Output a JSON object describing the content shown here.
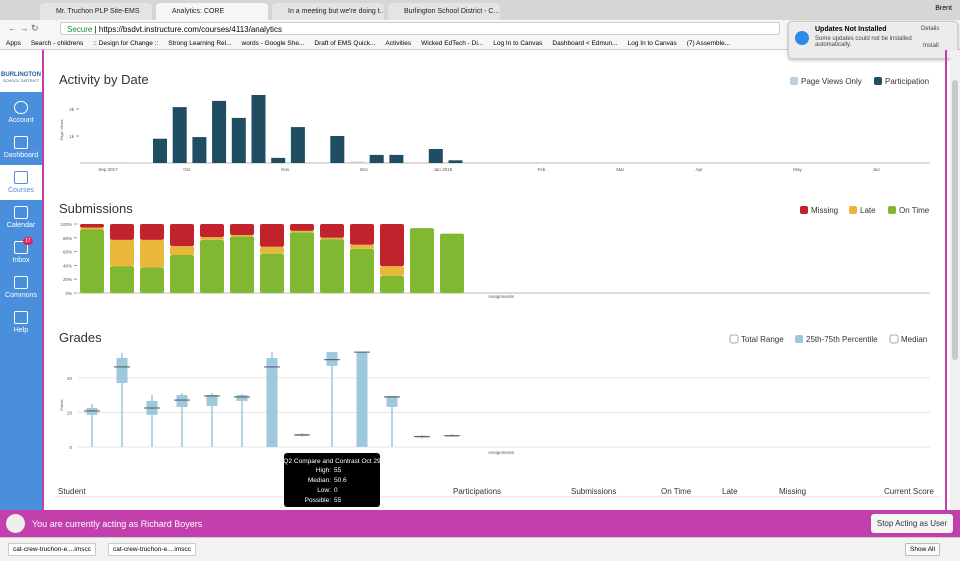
{
  "browser": {
    "tabs": [
      "Mr. Truchon PLP Site-EMS",
      "Analytics: CORE",
      "In a meeting but we're doing t...",
      "Burlington School District - C..."
    ],
    "user": "Brent",
    "secure": "Secure",
    "url": "https://bsdvt.instructure.com/courses/4113/analytics",
    "bookmarks": [
      "Apps",
      "Search - childrens",
      ":: Design for Change ::",
      "Strong Learning Rel...",
      "words - Google She...",
      "Draft of EMS Quick...",
      "Activities",
      "Wicked EdTech - Di...",
      "Log In to Canvas",
      "Dashboard < Edmun...",
      "Log In to Canvas",
      "(7) Assemble..."
    ]
  },
  "notification": {
    "title": "Updates Not Installed",
    "text": "Some updates could not be installed automatically.",
    "buttons": [
      "Details",
      "Install"
    ]
  },
  "sidebar": {
    "logo": "BURLINGTON",
    "logo_sub": "SCHOOL DISTRICT",
    "items": [
      "Account",
      "Dashboard",
      "Courses",
      "Calendar",
      "Inbox",
      "Commons",
      "Help"
    ],
    "inbox_badge": "17"
  },
  "activity": {
    "type": "bar",
    "title": "Activity by Date",
    "y_label": "Page Views",
    "categories": [
      "Sep 2017",
      null,
      null,
      null,
      "Oct",
      null,
      null,
      null,
      null,
      "Nov",
      null,
      null,
      null,
      "Dec",
      null,
      null,
      null,
      "Jan 2018",
      null,
      null,
      null,
      null,
      "Feb",
      null,
      null,
      null,
      "Mar",
      null,
      null,
      null,
      "Apr",
      null,
      null,
      null,
      null,
      "May",
      null,
      null,
      null,
      "Jun"
    ],
    "series": [
      {
        "name": "Page Views Only",
        "color": "#b9d0de",
        "values": [
          0,
          20,
          0,
          0,
          0,
          0,
          0,
          0,
          0,
          0,
          0,
          0,
          50,
          0,
          0,
          0,
          0,
          0,
          0,
          0,
          0,
          0,
          0,
          0,
          0,
          0,
          0,
          0,
          0,
          0,
          0,
          0,
          0,
          0,
          0,
          0,
          0,
          0,
          0,
          0
        ]
      },
      {
        "name": "Participation",
        "color": "#1f4e63",
        "values": [
          0,
          0,
          900,
          2070,
          960,
          2300,
          1670,
          2520,
          190,
          1330,
          0,
          1000,
          0,
          300,
          300,
          0,
          520,
          100,
          0,
          0,
          0,
          0,
          0,
          0,
          0,
          0,
          0,
          0,
          0,
          0,
          0,
          0,
          0,
          0,
          0,
          0,
          0,
          0,
          0,
          0
        ]
      }
    ],
    "ylim": [
      0,
      2500
    ],
    "yticks": [
      {
        "value": 1000,
        "label": "1k"
      },
      {
        "value": 2000,
        "label": "2k"
      }
    ]
  },
  "submissions": {
    "type": "stacked-bar",
    "title": "Submissions",
    "x_label": "Assignments",
    "series": [
      {
        "name": "Missing",
        "color": "#c2232c",
        "values": [
          5,
          23,
          23,
          32,
          19,
          16,
          33,
          10,
          20,
          30,
          61,
          0,
          0
        ]
      },
      {
        "name": "Late",
        "color": "#e9b83a",
        "values": [
          3,
          38,
          40,
          13,
          4,
          2,
          10,
          2,
          2,
          6,
          14,
          0,
          0
        ]
      },
      {
        "name": "On Time",
        "color": "#80b832",
        "values": [
          92,
          39,
          37,
          55,
          77,
          82,
          57,
          88,
          78,
          64,
          25,
          94,
          86
        ]
      }
    ],
    "ylim": [
      0,
      100
    ],
    "yticks": [
      {
        "value": 0,
        "label": "0%"
      },
      {
        "value": 20,
        "label": "20%"
      },
      {
        "value": 40,
        "label": "40%"
      },
      {
        "value": 60,
        "label": "60%"
      },
      {
        "value": 80,
        "label": "80%"
      },
      {
        "value": 100,
        "label": "100%"
      }
    ]
  },
  "grades": {
    "type": "box",
    "title": "Grades",
    "y_label": "Points",
    "x_label": "Assignments",
    "legend": [
      "Total Range",
      "25th-75th Percentile",
      "Median"
    ],
    "color": "#9ec8dc",
    "boxes": [
      {
        "low": 0,
        "q1": 18.6,
        "median": 20.9,
        "q3": 22.6,
        "high": 25
      },
      {
        "low": 0,
        "q1": 37.1,
        "median": 46.4,
        "q3": 51.6,
        "high": 54.5
      },
      {
        "low": 0,
        "q1": 18.6,
        "median": 22.6,
        "q3": 26.7,
        "high": 30.1
      },
      {
        "low": 0,
        "q1": 23.2,
        "median": 27.2,
        "q3": 30.1,
        "high": 31.3
      },
      {
        "low": 0,
        "q1": 23.8,
        "median": 29.6,
        "q3": 30.1,
        "high": 31.3
      },
      {
        "low": 0,
        "q1": 26.7,
        "median": 29,
        "q3": 30.1,
        "high": 30.7
      },
      {
        "low": 0,
        "q1": 0,
        "median": 46.4,
        "q3": 51.6,
        "high": 55
      },
      {
        "low": 6,
        "q1": 6.4,
        "median": 7,
        "q3": 7.5,
        "high": 8.1
      },
      {
        "low": 0,
        "q1": 47,
        "median": 50.6,
        "q3": 55,
        "high": 55
      },
      {
        "low": 0,
        "q1": 0,
        "median": 55,
        "q3": 55,
        "high": 55
      },
      {
        "low": 0,
        "q1": 23.2,
        "median": 29,
        "q3": 29.6,
        "high": 29.6
      },
      {
        "low": 5,
        "q1": 5.5,
        "median": 6,
        "q3": 6.5,
        "high": 7
      },
      {
        "low": 6,
        "q1": 6,
        "median": 6.5,
        "q3": 7,
        "high": 7.5
      }
    ],
    "ylim": [
      0,
      55
    ],
    "yticks": [
      0,
      20,
      40
    ],
    "tooltip": {
      "title": "Q2 Compare and Contrast Oct 29",
      "labels": [
        "High:",
        "Median:",
        "Low:",
        "Possible:"
      ],
      "possible": 55
    }
  },
  "table": {
    "columns": [
      "Student",
      "Participations",
      "Submissions",
      "On Time",
      "Late",
      "Missing",
      "Current Score"
    ]
  },
  "banner": {
    "text": "You are currently acting as Richard Boyers",
    "button": "Stop Acting as User"
  },
  "downloads": {
    "files": [
      "cat-crew-truchon-e....imscc",
      "cat-crew-truchon-e....imscc"
    ],
    "show_all": "Show All"
  }
}
